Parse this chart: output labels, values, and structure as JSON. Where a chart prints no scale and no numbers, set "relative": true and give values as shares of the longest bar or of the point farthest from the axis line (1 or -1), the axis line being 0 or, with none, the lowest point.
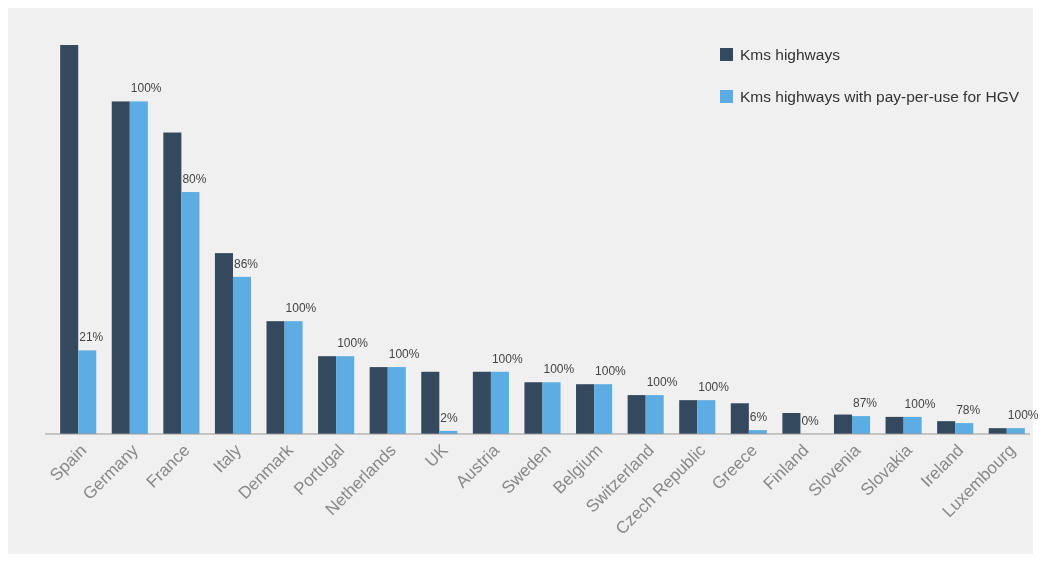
{
  "chart_data": {
    "type": "bar",
    "relative": true,
    "legend": "top right",
    "categories": [
      "Spain",
      "Germany",
      "France",
      "Italy",
      "Denmark",
      "Portugal",
      "Netherlands",
      "UK",
      "Austria",
      "Sweden",
      "Belgium",
      "Switzerland",
      "Czech Republic",
      "Greece",
      "Finland",
      "Slovenia",
      "Slovakia",
      "Ireland",
      "Luxembourg"
    ],
    "series": [
      {
        "name": "Kms highways",
        "color": "#34495e",
        "values": [
          1,
          0.855,
          0.775,
          0.465,
          0.29,
          0.2,
          0.172,
          0.16,
          0.16,
          0.133,
          0.128,
          0.1,
          0.087,
          0.079,
          0.054,
          0.05,
          0.044,
          0.033,
          0.015
        ]
      },
      {
        "name": "Kms highways with pay-per-use for HGV",
        "color": "#5dade2",
        "values": [
          0.215,
          0.855,
          0.622,
          0.404,
          0.29,
          0.2,
          0.172,
          0.008,
          0.16,
          0.133,
          0.128,
          0.1,
          0.087,
          0.01,
          0,
          0.046,
          0.044,
          0.028,
          0.015
        ]
      }
    ],
    "annotations": [
      {
        "text": "21%",
        "x": "Spain",
        "y": 0.215
      },
      {
        "text": "100%",
        "x": "Germany",
        "y": 0.855
      },
      {
        "text": "80%",
        "x": "France",
        "y": 0.622
      },
      {
        "text": "86%",
        "x": "Italy",
        "y": 0.404
      },
      {
        "text": "100%",
        "x": "Denmark",
        "y": 0.29
      },
      {
        "text": "100%",
        "x": "Portugal",
        "y": 0.2
      },
      {
        "text": "100%",
        "x": "Netherlands",
        "y": 0.172
      },
      {
        "text": "2%",
        "x": "UK",
        "y": 0.008
      },
      {
        "text": "100%",
        "x": "Austria",
        "y": 0.16
      },
      {
        "text": "100%",
        "x": "Sweden",
        "y": 0.133
      },
      {
        "text": "100%",
        "x": "Belgium",
        "y": 0.128
      },
      {
        "text": "100%",
        "x": "Switzerland",
        "y": 0.1
      },
      {
        "text": "100%",
        "x": "Czech Republic",
        "y": 0.087
      },
      {
        "text": "6%",
        "x": "Greece",
        "y": 0.01
      },
      {
        "text": "0%",
        "x": "Finland",
        "y": 0
      },
      {
        "text": "87%",
        "x": "Slovenia",
        "y": 0.046
      },
      {
        "text": "100%",
        "x": "Slovakia",
        "y": 0.044
      },
      {
        "text": "78%",
        "x": "Ireland",
        "y": 0.028
      },
      {
        "text": "100%",
        "x": "Luxembourg",
        "y": 0.015
      }
    ]
  }
}
